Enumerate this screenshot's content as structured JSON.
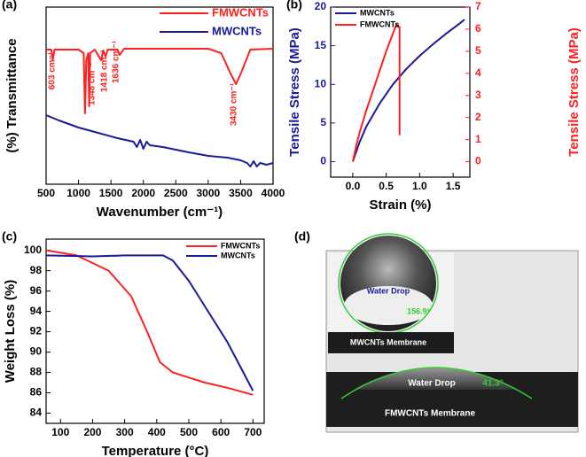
{
  "chart_data": [
    {
      "type": "line",
      "label": "(a)",
      "x_label": "Wavenumber (cm⁻¹)",
      "y_label": "(%) Transmittance",
      "xlim": [
        500,
        4000
      ],
      "xticks": [
        500,
        1000,
        1500,
        2000,
        2500,
        3000,
        3500,
        4000
      ],
      "ylim": [
        0,
        1
      ],
      "grid": false,
      "legend": "top-right",
      "annotations": [
        "603 cm⁻¹",
        "1348 cm⁻¹",
        "1418 cm⁻¹",
        "1636 cm⁻¹",
        "3430 cm⁻¹"
      ],
      "series": [
        {
          "name": "FMWCNTs",
          "color": "#ff2020",
          "x": [
            500,
            580,
            603,
            630,
            1000,
            1080,
            1100,
            1120,
            1150,
            1165,
            1180,
            1250,
            1348,
            1380,
            1418,
            1450,
            1600,
            1636,
            1700,
            2500,
            3000,
            3200,
            3350,
            3430,
            3520,
            3650,
            4000
          ],
          "values": [
            0.76,
            0.76,
            0.7,
            0.76,
            0.76,
            0.74,
            0.4,
            0.7,
            0.74,
            0.44,
            0.74,
            0.76,
            0.7,
            0.755,
            0.72,
            0.76,
            0.76,
            0.73,
            0.765,
            0.765,
            0.765,
            0.74,
            0.62,
            0.565,
            0.64,
            0.76,
            0.765
          ]
        },
        {
          "name": "MWCNTs",
          "color": "#1a1a9a",
          "x": [
            500,
            700,
            1000,
            1300,
            1600,
            1850,
            1900,
            1950,
            2000,
            2050,
            2100,
            2300,
            2700,
            3000,
            3300,
            3500,
            3600,
            3650,
            3700,
            3750,
            3800,
            3900,
            4000
          ],
          "values": [
            0.39,
            0.36,
            0.32,
            0.29,
            0.26,
            0.24,
            0.21,
            0.25,
            0.2,
            0.24,
            0.22,
            0.21,
            0.18,
            0.16,
            0.15,
            0.135,
            0.12,
            0.1,
            0.13,
            0.1,
            0.12,
            0.11,
            0.12
          ]
        }
      ]
    },
    {
      "type": "line",
      "label": "(b)",
      "x_label": "Strain (%)",
      "y_label": "Tensile Stress (MPa)",
      "y2_label": "Tensile Stress (MPa)",
      "xlim": [
        -0.33,
        1.75
      ],
      "xticks": [
        {
          "value": 0,
          "label": "0.0"
        },
        {
          "value": 0.5,
          "label": "0.5"
        },
        {
          "value": 1,
          "label": "1.0"
        },
        {
          "value": 1.5,
          "label": "1.5"
        }
      ],
      "ylim": [
        -2,
        20
      ],
      "yticks": [
        0,
        5,
        10,
        15,
        20
      ],
      "y2lim": [
        -0.7,
        7
      ],
      "y2ticks": [
        0,
        1,
        2,
        3,
        4,
        5,
        6,
        7
      ],
      "grid": false,
      "legend": "top-left",
      "series": [
        {
          "name": "MWCNTs",
          "color": "#1a1a9a",
          "x": [
            0,
            0.1,
            0.2,
            0.4,
            0.6,
            0.8,
            1.0,
            1.2,
            1.4,
            1.6,
            1.67
          ],
          "values": [
            0,
            2.5,
            4.5,
            7.5,
            10,
            12,
            13.7,
            15.2,
            16.6,
            17.9,
            18.4
          ]
        },
        {
          "name": "FMWCNTs",
          "color": "#ff2020",
          "axis": "y2",
          "x": [
            0,
            0.05,
            0.1,
            0.2,
            0.3,
            0.4,
            0.5,
            0.6,
            0.65,
            0.68,
            0.7,
            0.7
          ],
          "values": [
            0,
            0.7,
            1.3,
            2.3,
            3.2,
            4.1,
            5.0,
            5.8,
            6.2,
            6.1,
            6.1,
            1.2
          ]
        }
      ]
    },
    {
      "type": "line",
      "label": "(c)",
      "x_label": "Temperature (°C)",
      "y_label": "Weight Loss (%)",
      "xlim": [
        55,
        735
      ],
      "xticks": [
        100,
        200,
        300,
        400,
        500,
        600,
        700
      ],
      "ylim": [
        83,
        101.1
      ],
      "yticks": [
        84,
        86,
        88,
        90,
        92,
        94,
        96,
        98,
        100
      ],
      "grid": false,
      "legend": "top-right",
      "series": [
        {
          "name": "FMWCNTs",
          "color": "#ff2020",
          "x": [
            55,
            150,
            250,
            320,
            370,
            410,
            450,
            500,
            550,
            620,
            700
          ],
          "values": [
            100,
            99.5,
            98,
            95.5,
            92,
            89,
            88,
            87.5,
            87,
            86.5,
            85.8
          ]
        },
        {
          "name": "MWCNTs",
          "color": "#1a1a9a",
          "x": [
            55,
            200,
            300,
            420,
            450,
            500,
            560,
            620,
            670,
            700
          ],
          "values": [
            99.5,
            99.4,
            99.5,
            99.5,
            99,
            97,
            94,
            91,
            88,
            86.2
          ]
        }
      ]
    }
  ],
  "photo": {
    "label": "(d)",
    "top": {
      "drop": "Water Drop",
      "angle": "156.9°",
      "membrane": "MWCNTs Membrane"
    },
    "bottom": {
      "drop": "Water Drop",
      "angle": "41.3°",
      "membrane": "FMWCNTs Membrane"
    }
  }
}
